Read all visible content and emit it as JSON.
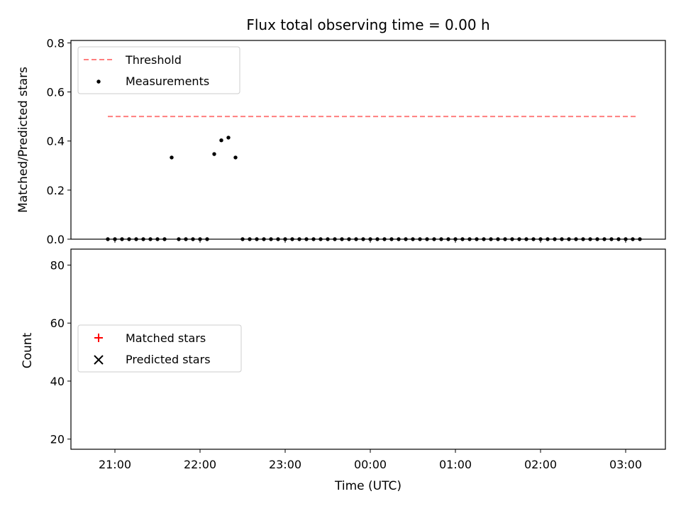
{
  "chart_data": [
    {
      "type": "scatter",
      "title": "Flux total observing time = 0.00 h",
      "xlabel": "",
      "ylabel": "Matched/Predicted stars",
      "ylim": [
        0,
        0.81
      ],
      "yticks": [
        "0.0",
        "0.2",
        "0.4",
        "0.6",
        "0.8"
      ],
      "threshold": {
        "name": "Threshold",
        "value": 0.5,
        "x_start": "20:55",
        "x_end": "03:08",
        "color": "#ff7f7f",
        "style": "dashed"
      },
      "series": [
        {
          "name": "Measurements",
          "marker": "dot",
          "color": "#000000",
          "x": [
            "20:55",
            "21:00",
            "21:05",
            "21:10",
            "21:15",
            "21:20",
            "21:25",
            "21:30",
            "21:35",
            "21:40",
            "21:45",
            "21:50",
            "21:55",
            "22:00",
            "22:05",
            "22:10",
            "22:15",
            "22:20",
            "22:25",
            "22:30",
            "22:35",
            "22:40",
            "22:45",
            "22:50",
            "22:55",
            "23:00",
            "23:05",
            "23:10",
            "23:15",
            "23:20",
            "23:25",
            "23:30",
            "23:35",
            "23:40",
            "23:45",
            "23:50",
            "23:55",
            "00:00",
            "00:05",
            "00:10",
            "00:15",
            "00:20",
            "00:25",
            "00:30",
            "00:35",
            "00:40",
            "00:45",
            "00:50",
            "00:55",
            "01:00",
            "01:05",
            "01:10",
            "01:15",
            "01:20",
            "01:25",
            "01:30",
            "01:35",
            "01:40",
            "01:45",
            "01:50",
            "01:55",
            "02:00",
            "02:05",
            "02:10",
            "02:15",
            "02:20",
            "02:25",
            "02:30",
            "02:35",
            "02:40",
            "02:45",
            "02:50",
            "02:55",
            "03:00",
            "03:05",
            "03:10"
          ],
          "y": [
            0,
            0,
            0,
            0,
            0,
            0,
            0,
            0,
            0,
            0.333,
            0,
            0,
            0,
            0,
            0,
            0.347,
            0.403,
            0.414,
            0.333,
            0,
            0,
            0,
            0,
            0,
            0,
            0,
            0,
            0,
            0,
            0,
            0,
            0,
            0,
            0,
            0,
            0,
            0,
            0,
            0,
            0,
            0,
            0,
            0,
            0,
            0,
            0,
            0,
            0,
            0,
            0,
            0,
            0,
            0,
            0,
            0,
            0,
            0,
            0,
            0,
            0,
            0,
            0,
            0,
            0,
            0,
            0,
            0,
            0,
            0,
            0,
            0,
            0,
            0,
            0,
            0,
            0
          ]
        }
      ]
    },
    {
      "type": "scatter",
      "title": "",
      "xlabel": "Time (UTC)",
      "ylabel": "Count",
      "ylim": [
        16.5,
        85.5
      ],
      "yticks": [
        "20",
        "40",
        "60",
        "80"
      ],
      "xticks": [
        "21:00",
        "22:00",
        "23:00",
        "00:00",
        "01:00",
        "02:00",
        "03:00"
      ],
      "series": [
        {
          "name": "Matched stars",
          "marker": "plus",
          "color": "#ff0000",
          "x": [],
          "y": []
        },
        {
          "name": "Predicted stars",
          "marker": "x",
          "color": "#000000",
          "x": [],
          "y": []
        }
      ]
    }
  ]
}
